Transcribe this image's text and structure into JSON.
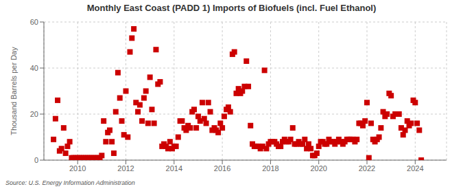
{
  "chart_data": {
    "type": "scatter",
    "title": "Monthly East Coast (PADD 1) Imports of Biofuels (incl. Fuel Ethanol)",
    "ylabel": "Thousand Barrels per Day",
    "source": "Source: U.S. Energy Information Administration",
    "color": "#cc0000",
    "marker": "square",
    "grid": true,
    "xlim": [
      2008.6,
      2025.3
    ],
    "xticks": [
      2010,
      2012,
      2014,
      2016,
      2018,
      2020,
      2022,
      2024
    ],
    "ylim": [
      0,
      60
    ],
    "yticks": [
      0,
      20,
      40,
      60
    ],
    "x": [
      2009.0,
      2009.08,
      2009.17,
      2009.25,
      2009.33,
      2009.42,
      2009.5,
      2009.58,
      2009.67,
      2009.75,
      2009.83,
      2009.92,
      2010.0,
      2010.08,
      2010.17,
      2010.25,
      2010.33,
      2010.42,
      2010.5,
      2010.58,
      2010.67,
      2010.75,
      2010.83,
      2010.92,
      2011.0,
      2011.08,
      2011.17,
      2011.25,
      2011.33,
      2011.42,
      2011.5,
      2011.58,
      2011.67,
      2011.75,
      2011.83,
      2011.92,
      2012.0,
      2012.08,
      2012.17,
      2012.25,
      2012.33,
      2012.42,
      2012.5,
      2012.58,
      2012.67,
      2012.75,
      2012.83,
      2012.92,
      2013.0,
      2013.08,
      2013.17,
      2013.25,
      2013.33,
      2013.42,
      2013.5,
      2013.58,
      2013.67,
      2013.75,
      2013.83,
      2013.92,
      2014.0,
      2014.08,
      2014.17,
      2014.25,
      2014.33,
      2014.42,
      2014.5,
      2014.58,
      2014.67,
      2014.75,
      2014.83,
      2014.92,
      2015.0,
      2015.08,
      2015.17,
      2015.25,
      2015.33,
      2015.42,
      2015.5,
      2015.58,
      2015.67,
      2015.75,
      2015.83,
      2015.92,
      2016.0,
      2016.08,
      2016.17,
      2016.25,
      2016.33,
      2016.42,
      2016.5,
      2016.58,
      2016.67,
      2016.75,
      2016.83,
      2016.92,
      2017.0,
      2017.08,
      2017.17,
      2017.25,
      2017.33,
      2017.42,
      2017.5,
      2017.58,
      2017.67,
      2017.75,
      2017.83,
      2017.92,
      2018.0,
      2018.08,
      2018.17,
      2018.25,
      2018.33,
      2018.42,
      2018.5,
      2018.58,
      2018.67,
      2018.75,
      2018.83,
      2018.92,
      2019.0,
      2019.08,
      2019.17,
      2019.25,
      2019.33,
      2019.42,
      2019.5,
      2019.58,
      2019.67,
      2019.75,
      2019.83,
      2019.92,
      2020.0,
      2020.08,
      2020.17,
      2020.25,
      2020.33,
      2020.42,
      2020.5,
      2020.58,
      2020.67,
      2020.75,
      2020.83,
      2020.92,
      2021.0,
      2021.08,
      2021.17,
      2021.25,
      2021.33,
      2021.42,
      2021.5,
      2021.58,
      2021.67,
      2021.75,
      2021.83,
      2021.92,
      2022.0,
      2022.08,
      2022.17,
      2022.25,
      2022.33,
      2022.42,
      2022.5,
      2022.58,
      2022.67,
      2022.75,
      2022.83,
      2022.92,
      2023.0,
      2023.08,
      2023.17,
      2023.25,
      2023.33,
      2023.42,
      2023.5,
      2023.58,
      2023.67,
      2023.75,
      2023.83,
      2023.92,
      2024.0,
      2024.08,
      2024.17,
      2024.25
    ],
    "values": [
      9,
      18,
      26,
      4,
      5,
      14,
      3,
      6,
      8,
      1,
      1,
      1,
      1,
      1,
      1,
      1,
      1,
      1,
      1,
      1,
      1,
      1,
      1,
      1,
      2,
      17,
      8,
      12,
      13,
      8,
      3,
      21,
      38,
      27,
      17,
      11,
      30,
      10,
      47,
      53,
      57,
      25,
      21,
      24,
      17,
      27,
      30,
      16,
      36,
      22,
      16,
      48,
      33,
      34,
      6,
      7,
      6,
      5,
      8,
      5,
      6,
      6,
      10,
      17,
      17,
      14,
      13,
      15,
      14,
      21,
      22,
      14,
      19,
      17,
      25,
      18,
      16,
      25,
      21,
      13,
      14,
      13,
      12,
      16,
      14,
      19,
      22,
      23,
      21,
      46,
      47,
      29,
      31,
      29,
      30,
      32,
      43,
      32,
      15,
      7,
      6,
      6,
      6,
      5,
      6,
      39,
      5,
      7,
      8,
      8,
      8,
      7,
      6,
      6,
      8,
      9,
      8,
      8,
      9,
      14,
      7,
      7,
      8,
      7,
      7,
      9,
      5,
      7,
      5,
      2,
      2,
      3,
      6,
      8,
      8,
      7,
      7,
      9,
      8,
      8,
      7,
      8,
      9,
      8,
      7,
      8,
      9,
      9,
      9,
      9,
      8,
      9,
      16,
      16,
      15,
      17,
      25,
      1,
      16,
      9,
      8,
      9,
      10,
      14,
      21,
      19,
      20,
      29,
      28,
      19,
      20,
      20,
      20,
      14,
      11,
      13,
      17,
      15,
      16,
      26,
      25,
      16,
      13,
      0
    ]
  }
}
